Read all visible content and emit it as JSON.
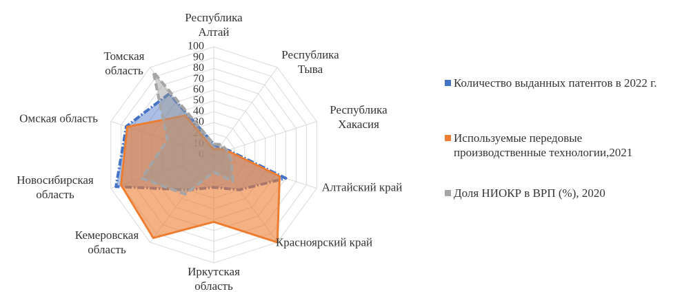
{
  "chart_data": {
    "type": "radar",
    "categories": [
      "Республика Алтай",
      "Республика Тыва",
      "Республика Хакасия",
      "Алтайский край",
      "Красноярский край",
      "Иркутская область",
      "Кемеровская область",
      "Новосибирская область",
      "Омская область",
      "Томская область"
    ],
    "series": [
      {
        "name": "Количество выданных патентов в 2022 г.",
        "color": "#4472c4",
        "values": [
          10,
          8,
          14,
          70,
          40,
          30,
          40,
          95,
          85,
          70
        ]
      },
      {
        "name": "Используемые передовые производственные технологии,2021",
        "color": "#ed7d31",
        "values": [
          5,
          7,
          13,
          64,
          100,
          62,
          95,
          90,
          84,
          45
        ]
      },
      {
        "name": "Доля НИОКР в ВРП (%), 2020",
        "color": "#a5a5a5",
        "values": [
          10,
          12,
          13,
          17,
          30,
          16,
          45,
          70,
          45,
          95
        ]
      }
    ],
    "ylim": [
      0,
      100
    ],
    "yticks": [
      0,
      10,
      20,
      30,
      40,
      50,
      60,
      70,
      80,
      90,
      100
    ],
    "grid": true,
    "legend": "right"
  }
}
